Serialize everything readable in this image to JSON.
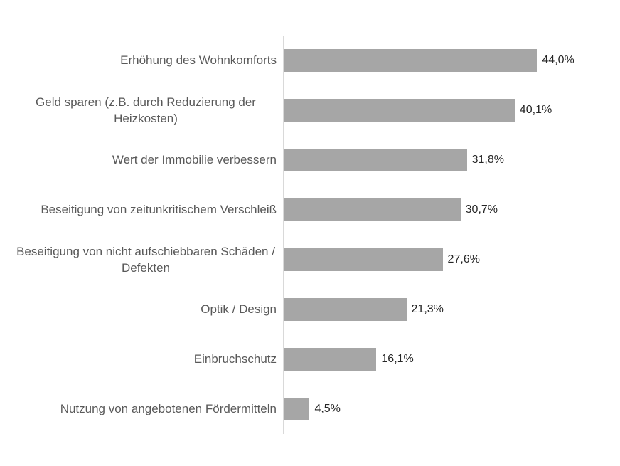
{
  "chart_data": {
    "type": "bar",
    "orientation": "horizontal",
    "title": "",
    "xlabel": "",
    "ylabel": "",
    "grid": false,
    "legend": false,
    "xlim": [
      0,
      50
    ],
    "categories": [
      "Erhöhung des Wohnkomforts",
      "Geld sparen (z.B. durch Reduzierung der Heizkosten)",
      "Wert der Immobilie verbessern",
      "Beseitigung von zeitunkritischem Verschleiß",
      "Beseitigung von nicht aufschiebbaren Schäden / Defekten",
      "Optik / Design",
      "Einbruchschutz",
      "Nutzung von angebotenen Fördermitteln"
    ],
    "values": [
      44.0,
      40.1,
      31.8,
      30.7,
      27.6,
      21.3,
      16.1,
      4.5
    ],
    "value_labels": [
      "44,0%",
      "40,1%",
      "31,8%",
      "30,7%",
      "27,6%",
      "21,3%",
      "16,1%",
      "4,5%"
    ],
    "bar_color": "#a6a6a6",
    "axis_line_color": "#d9d9d9",
    "category_label_color": "#595959",
    "value_label_color": "#262626"
  }
}
